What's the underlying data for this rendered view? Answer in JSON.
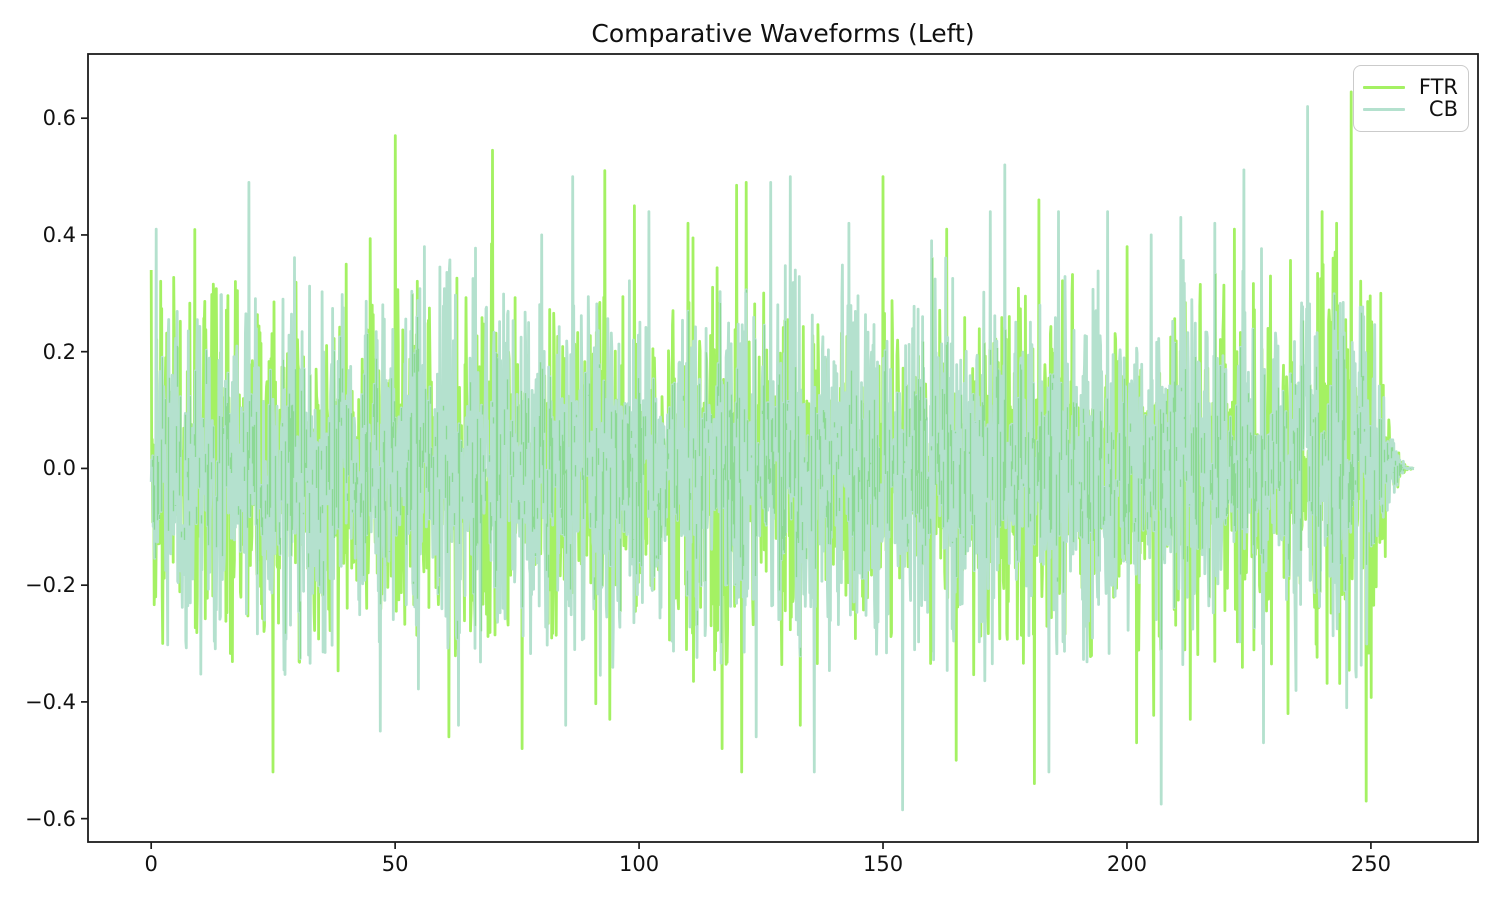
{
  "figure": {
    "background": "#ffffff"
  },
  "chart_data": {
    "type": "line",
    "title": "Comparative Waveforms (Left)",
    "xlabel": "",
    "ylabel": "",
    "grid": false,
    "legend_position": "upper right",
    "series": [
      {
        "name": "FTR",
        "color": "#a4f163"
      },
      {
        "name": "CB",
        "color": "#b4e1ce"
      }
    ],
    "overlap_color": "#8cd994",
    "axis_color": "#1c1c1c",
    "x_ticks": [
      0,
      50,
      100,
      150,
      200,
      250
    ],
    "x_tick_labels": [
      "0",
      "50",
      "100",
      "150",
      "200",
      "250"
    ],
    "y_ticks": [
      0.6,
      0.4,
      0.2,
      0.0,
      -0.2,
      -0.4,
      -0.6
    ],
    "y_tick_labels": [
      "0.6",
      "0.4",
      "0.2",
      "0.0",
      "−0.2",
      "−0.4",
      "−0.6"
    ],
    "xlim": [
      -12.95,
      271.95
    ],
    "ylim": [
      -0.64,
      0.71
    ],
    "x_start": 0,
    "x_end": 258.8,
    "samples": 2520,
    "noise_seed": 1337,
    "env_step": 8,
    "taper_start": 250.5,
    "envelope_ftr": [
      0.34,
      0.3,
      0.33,
      0.31,
      0.35,
      0.32,
      0.34,
      0.33,
      0.3,
      0.35,
      0.33,
      0.31,
      0.34,
      0.32,
      0.35,
      0.33,
      0.31,
      0.34,
      0.32,
      0.35,
      0.33,
      0.3,
      0.34,
      0.32,
      0.35,
      0.31,
      0.33,
      0.35,
      0.32,
      0.34,
      0.36,
      0.38,
      0.35,
      0.34
    ],
    "envelope_cb": [
      0.36,
      0.33,
      0.31,
      0.34,
      0.32,
      0.35,
      0.3,
      0.33,
      0.35,
      0.32,
      0.34,
      0.31,
      0.35,
      0.33,
      0.3,
      0.34,
      0.32,
      0.35,
      0.33,
      0.31,
      0.34,
      0.32,
      0.35,
      0.33,
      0.36,
      0.32,
      0.34,
      0.31,
      0.35,
      0.33,
      0.36,
      0.34,
      0.33,
      0.32
    ],
    "spikes": [
      [
        0,
        0.34,
        0
      ],
      [
        1,
        0.41,
        1
      ],
      [
        20,
        0.49,
        1
      ],
      [
        25,
        -0.52,
        0
      ],
      [
        40,
        0.35,
        0
      ],
      [
        47,
        -0.45,
        1
      ],
      [
        50,
        0.57,
        0
      ],
      [
        56,
        0.38,
        1
      ],
      [
        61,
        -0.46,
        0
      ],
      [
        63,
        -0.44,
        1
      ],
      [
        70,
        0.545,
        0
      ],
      [
        76,
        -0.48,
        0
      ],
      [
        80,
        0.4,
        1
      ],
      [
        85,
        -0.44,
        1
      ],
      [
        93,
        0.51,
        0
      ],
      [
        94,
        -0.43,
        0
      ],
      [
        99,
        0.45,
        0
      ],
      [
        102,
        0.44,
        1
      ],
      [
        110,
        0.42,
        0
      ],
      [
        117,
        -0.48,
        0
      ],
      [
        120,
        0.485,
        0
      ],
      [
        121,
        -0.52,
        0
      ],
      [
        122,
        0.49,
        0
      ],
      [
        124,
        -0.46,
        1
      ],
      [
        127,
        0.49,
        1
      ],
      [
        131,
        0.5,
        1
      ],
      [
        133,
        -0.44,
        0
      ],
      [
        143,
        0.42,
        1
      ],
      [
        150,
        0.5,
        0
      ],
      [
        154,
        -0.585,
        1
      ],
      [
        160,
        0.39,
        1
      ],
      [
        163,
        0.41,
        0
      ],
      [
        165,
        -0.5,
        0
      ],
      [
        172,
        0.44,
        1
      ],
      [
        175,
        0.52,
        1
      ],
      [
        181,
        -0.54,
        0
      ],
      [
        182,
        0.46,
        0
      ],
      [
        184,
        -0.52,
        1
      ],
      [
        186,
        0.44,
        1
      ],
      [
        196,
        0.44,
        1
      ],
      [
        200,
        0.38,
        0
      ],
      [
        202,
        -0.47,
        0
      ],
      [
        205,
        0.4,
        1
      ],
      [
        207,
        -0.575,
        1
      ],
      [
        211,
        0.43,
        1
      ],
      [
        213,
        -0.43,
        0
      ],
      [
        218,
        0.42,
        1
      ],
      [
        222,
        0.41,
        0
      ],
      [
        228,
        -0.47,
        1
      ],
      [
        233,
        -0.42,
        0
      ],
      [
        237,
        0.62,
        1
      ],
      [
        240,
        0.44,
        0
      ],
      [
        243,
        0.42,
        0
      ],
      [
        245,
        -0.41,
        1
      ],
      [
        246,
        0.645,
        0
      ],
      [
        249,
        -0.57,
        0
      ],
      [
        252,
        0.3,
        0
      ]
    ]
  }
}
